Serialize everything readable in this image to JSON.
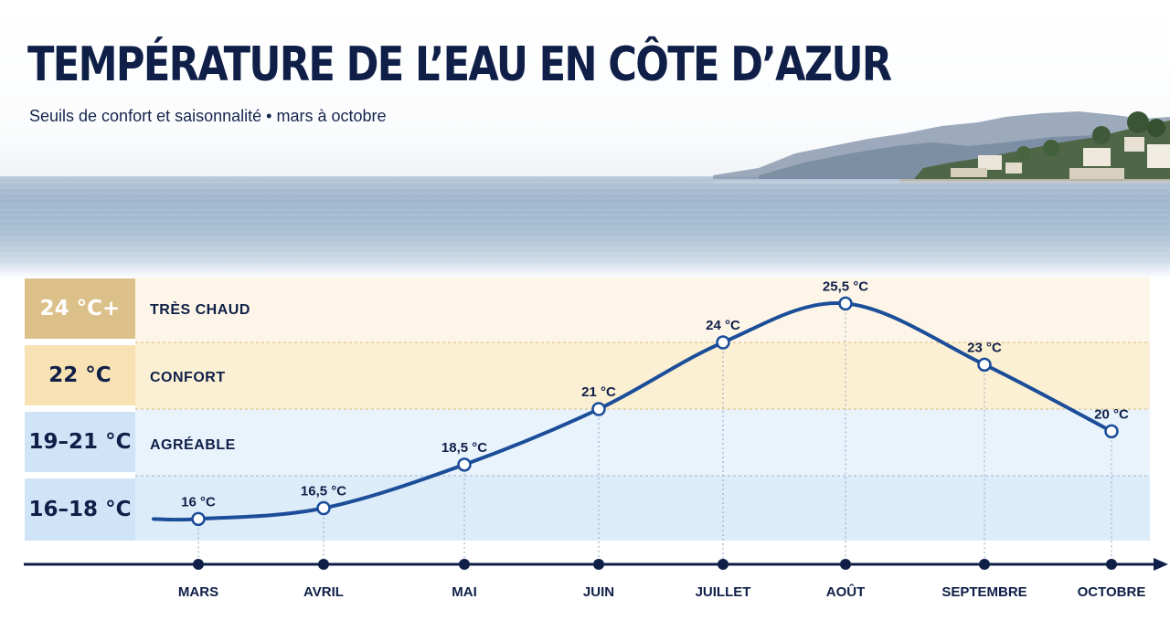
{
  "title": "TEMPÉRATURE DE L’EAU EN CÔTE D’AZUR",
  "subtitle": "Seuils de confort et saisonnalité • mars à octobre",
  "colors": {
    "navy": "#0f1f48",
    "line": "#1b4d99",
    "band_tres_chaud": "#fdf6e8",
    "band_confort": "#fcf0d4",
    "band_agreable": "#e9f3fc",
    "band_frais": "#ddecf9",
    "label_tres_chaud": "#dcc08a",
    "label_confort": "#f8e2b4",
    "label_agreable": "#cfe4f7",
    "label_frais": "#cfe4f7"
  },
  "bands": [
    {
      "label": "24 °C+",
      "name": "TRÈS CHAUD"
    },
    {
      "label": "22 °C",
      "name": "CONFORT"
    },
    {
      "label": "19–21 °C",
      "name": "AGRÉABLE"
    },
    {
      "label": "16–18 °C",
      "name": ""
    }
  ],
  "chart_data": {
    "type": "line",
    "x": [
      "MARS",
      "AVRIL",
      "MAI",
      "JUIN",
      "JUILLET",
      "AOÛT",
      "SEPTEMBRE",
      "OCTOBRE"
    ],
    "series": [
      {
        "values": [
          16,
          16.5,
          18.5,
          21,
          24,
          25.5,
          23,
          20
        ],
        "labels": [
          "16 °C",
          "16,5 °C",
          "18,5 °C",
          "21 °C",
          "24 °C",
          "25,5 °C",
          "23 °C",
          "20 °C"
        ]
      }
    ],
    "title": "TEMPÉRATURE DE L’EAU EN CÔTE D’AZUR",
    "xlabel": "",
    "ylabel": "",
    "thresholds": [
      15,
      18,
      21,
      24,
      26.5
    ],
    "ylim": [
      15,
      26.5
    ],
    "grid": true
  }
}
